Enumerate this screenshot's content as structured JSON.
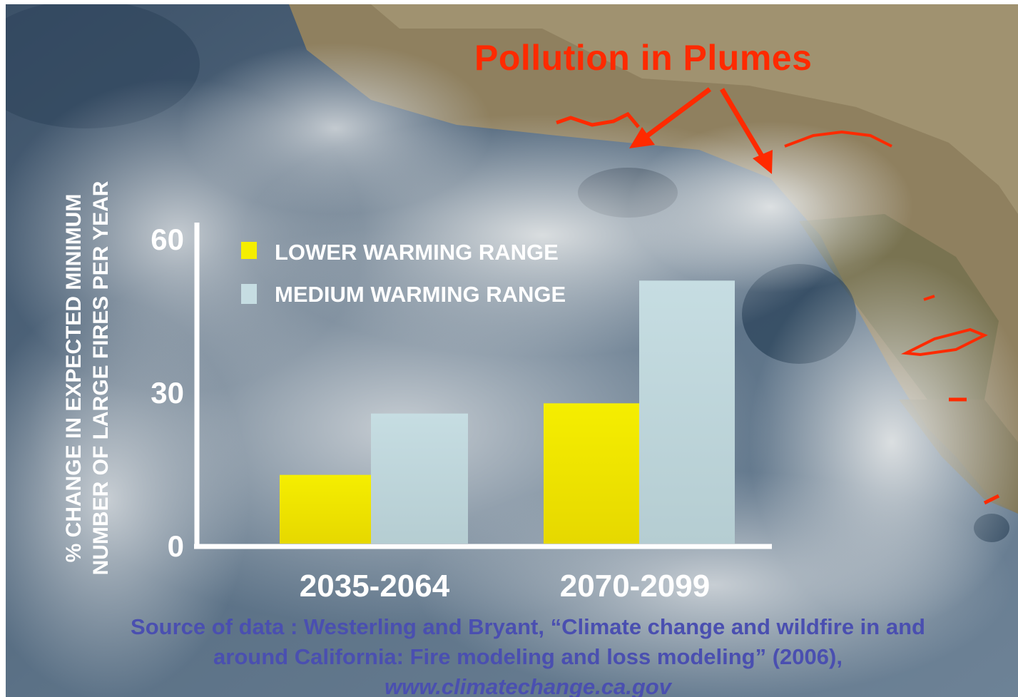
{
  "annotation": {
    "title": "Pollution in Plumes",
    "color": "#ff2a00"
  },
  "chart_data": {
    "type": "bar",
    "categories": [
      "2035-2064",
      "2070-2099"
    ],
    "series": [
      {
        "name": "LOWER WARMING RANGE",
        "values": [
          14,
          28
        ],
        "color": "#f5ee00"
      },
      {
        "name": "MEDIUM WARMING RANGE",
        "values": [
          26,
          52
        ],
        "color": "#c6dde2"
      }
    ],
    "ylabel_lines": [
      "% CHANGE IN EXPECTED MINIMUM",
      "NUMBER OF LARGE FIRES PER YEAR"
    ],
    "yticks": [
      0,
      30,
      60
    ],
    "ylim": [
      0,
      60
    ],
    "legend_position": "top-left",
    "grid": false
  },
  "source": {
    "line1": "Source of data : Westerling and Bryant, “Climate change and wildfire in and",
    "line2": "around California: Fire modeling and loss modeling” (2006),",
    "url": "www.climatechange.ca.gov",
    "color": "#4a4fb0"
  }
}
